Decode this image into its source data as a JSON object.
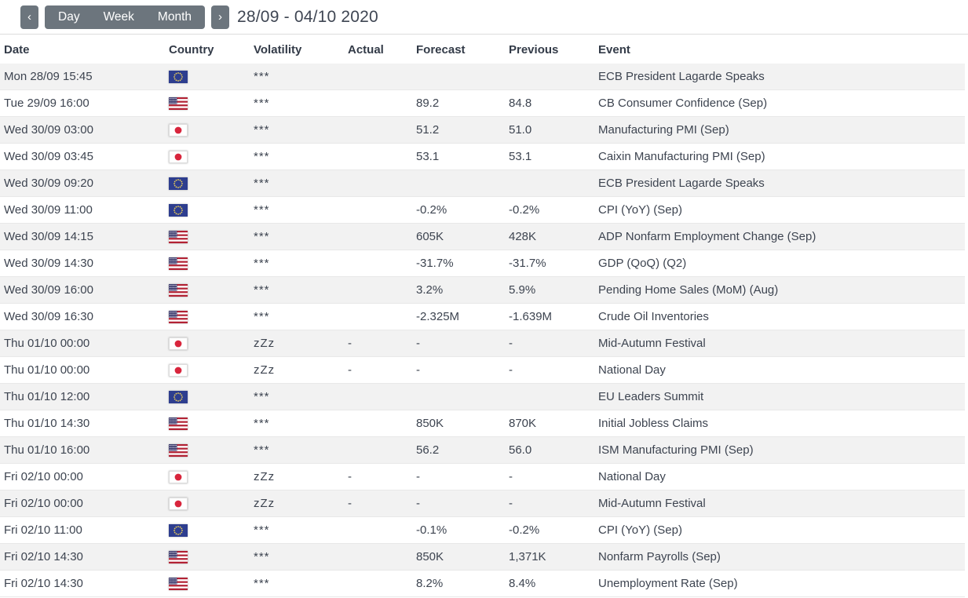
{
  "toolbar": {
    "prev_label": "‹",
    "next_label": "›",
    "view_buttons": [
      "Day",
      "Week",
      "Month"
    ],
    "date_range": "28/09 - 04/10 2020"
  },
  "table": {
    "columns": [
      "Date",
      "Country",
      "Volatility",
      "Actual",
      "Forecast",
      "Previous",
      "Event"
    ],
    "rows": [
      {
        "date": "Mon 28/09 15:45",
        "flag": "eu",
        "volatility": "***",
        "actual": "",
        "forecast": "",
        "previous": "",
        "event": "ECB President Lagarde Speaks"
      },
      {
        "date": "Tue 29/09 16:00",
        "flag": "us",
        "volatility": "***",
        "actual": "",
        "forecast": "89.2",
        "previous": "84.8",
        "event": "CB Consumer Confidence (Sep)"
      },
      {
        "date": "Wed 30/09 03:00",
        "flag": "jp",
        "volatility": "***",
        "actual": "",
        "forecast": "51.2",
        "previous": "51.0",
        "event": "Manufacturing PMI (Sep)"
      },
      {
        "date": "Wed 30/09 03:45",
        "flag": "jp",
        "volatility": "***",
        "actual": "",
        "forecast": "53.1",
        "previous": "53.1",
        "event": "Caixin Manufacturing PMI (Sep)"
      },
      {
        "date": "Wed 30/09 09:20",
        "flag": "eu",
        "volatility": "***",
        "actual": "",
        "forecast": "",
        "previous": "",
        "event": "ECB President Lagarde Speaks"
      },
      {
        "date": "Wed 30/09 11:00",
        "flag": "eu",
        "volatility": "***",
        "actual": "",
        "forecast": "-0.2%",
        "previous": "-0.2%",
        "event": "CPI (YoY) (Sep)"
      },
      {
        "date": "Wed 30/09 14:15",
        "flag": "us",
        "volatility": "***",
        "actual": "",
        "forecast": "605K",
        "previous": "428K",
        "event": "ADP Nonfarm Employment Change (Sep)"
      },
      {
        "date": "Wed 30/09 14:30",
        "flag": "us",
        "volatility": "***",
        "actual": "",
        "forecast": "-31.7%",
        "previous": "-31.7%",
        "event": "GDP (QoQ) (Q2)"
      },
      {
        "date": "Wed 30/09 16:00",
        "flag": "us",
        "volatility": "***",
        "actual": "",
        "forecast": "3.2%",
        "previous": "5.9%",
        "event": "Pending Home Sales (MoM) (Aug)"
      },
      {
        "date": "Wed 30/09 16:30",
        "flag": "us",
        "volatility": "***",
        "actual": "",
        "forecast": "-2.325M",
        "previous": "-1.639M",
        "event": "Crude Oil Inventories"
      },
      {
        "date": "Thu 01/10 00:00",
        "flag": "jp",
        "volatility": "zZz",
        "actual": "-",
        "forecast": "-",
        "previous": "-",
        "event": "Mid-Autumn Festival"
      },
      {
        "date": "Thu 01/10 00:00",
        "flag": "jp",
        "volatility": "zZz",
        "actual": "-",
        "forecast": "-",
        "previous": "-",
        "event": "National Day"
      },
      {
        "date": "Thu 01/10 12:00",
        "flag": "eu",
        "volatility": "***",
        "actual": "",
        "forecast": "",
        "previous": "",
        "event": "EU Leaders Summit"
      },
      {
        "date": "Thu 01/10 14:30",
        "flag": "us",
        "volatility": "***",
        "actual": "",
        "forecast": "850K",
        "previous": "870K",
        "event": "Initial Jobless Claims"
      },
      {
        "date": "Thu 01/10 16:00",
        "flag": "us",
        "volatility": "***",
        "actual": "",
        "forecast": "56.2",
        "previous": "56.0",
        "event": "ISM Manufacturing PMI (Sep)"
      },
      {
        "date": "Fri 02/10 00:00",
        "flag": "jp",
        "volatility": "zZz",
        "actual": "-",
        "forecast": "-",
        "previous": "-",
        "event": "National Day"
      },
      {
        "date": "Fri 02/10 00:00",
        "flag": "jp",
        "volatility": "zZz",
        "actual": "-",
        "forecast": "-",
        "previous": "-",
        "event": "Mid-Autumn Festival"
      },
      {
        "date": "Fri 02/10 11:00",
        "flag": "eu",
        "volatility": "***",
        "actual": "",
        "forecast": "-0.1%",
        "previous": "-0.2%",
        "event": "CPI (YoY) (Sep)"
      },
      {
        "date": "Fri 02/10 14:30",
        "flag": "us",
        "volatility": "***",
        "actual": "",
        "forecast": "850K",
        "previous": "1,371K",
        "event": "Nonfarm Payrolls (Sep)"
      },
      {
        "date": "Fri 02/10 14:30",
        "flag": "us",
        "volatility": "***",
        "actual": "",
        "forecast": "8.2%",
        "previous": "8.4%",
        "event": "Unemployment Rate (Sep)"
      }
    ]
  },
  "colors": {
    "button_bg": "#6c757d",
    "row_stripe": "#f2f2f2",
    "row_border": "#e8e8e8",
    "text": "#3d4450",
    "flag_eu_blue": "#2e3e8f",
    "flag_eu_stars": "#f2d355",
    "flag_us_red": "#b22234",
    "flag_us_blue": "#3c3b6e",
    "flag_jp_red": "#d8253c"
  }
}
